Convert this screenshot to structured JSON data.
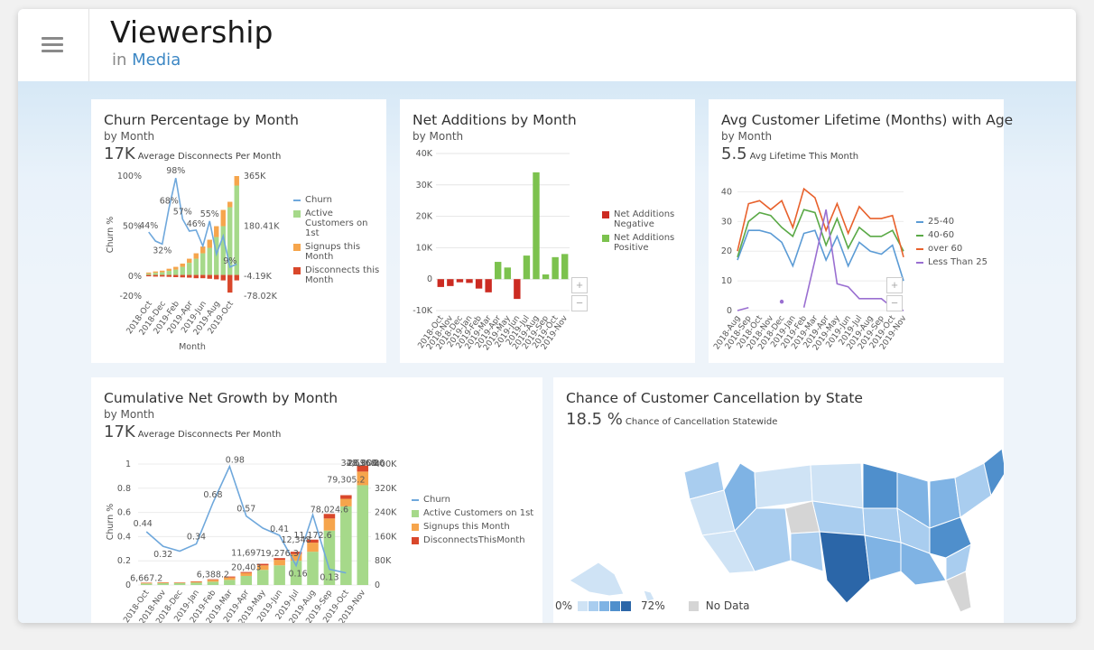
{
  "header": {
    "title": "Viewership",
    "in_label": "in",
    "space_link": "Media"
  },
  "colors": {
    "churn": "#6fa8dc",
    "active": "#a6d98a",
    "signups": "#f6a54c",
    "disconnects": "#d9472b",
    "neg": "#cc2b22",
    "pos": "#7cc24e",
    "age_25_40": "#5b9bd5",
    "age_40_60": "#5aa946",
    "age_over60": "#e8612c",
    "age_lt25": "#9a6fd1"
  },
  "cards": {
    "churn": {
      "title": "Churn Percentage by Month",
      "by": "by Month",
      "kpi": "17K",
      "kpi_label": "Average Disconnects Per Month",
      "legend": [
        "Churn",
        "Active Customers on 1st",
        "Signups this Month",
        "Disconnects this Month"
      ],
      "ylabel": "Churn %",
      "xlabel": "Month",
      "y_left_ticks": [
        "100%",
        "50%",
        "0%",
        "-20%"
      ],
      "y_right_ticks": [
        "365K",
        "180.41K",
        "-4.19K",
        "-78.02K"
      ],
      "x_ticks": [
        "2018-Oct",
        "2018-Dec",
        "2019-Feb",
        "2019-Apr",
        "2019-Jun",
        "2019-Aug",
        "2019-Oct"
      ],
      "data_labels": [
        "44%",
        "32%",
        "68%",
        "98%",
        "57%",
        "46%",
        "55%",
        "9%"
      ]
    },
    "net": {
      "title": "Net Additions by Month",
      "by": "by Month",
      "legend": [
        "Net Additions Negative",
        "Net Additions Positive"
      ],
      "y_ticks": [
        "40K",
        "30K",
        "20K",
        "10K",
        "0",
        "-10K"
      ],
      "x_ticks": [
        "2018-Oct",
        "2018-Nov",
        "2018-Dec",
        "2019-Jan",
        "2019-Feb",
        "2019-Mar",
        "2019-Apr",
        "2019-May",
        "2019-Jun",
        "2019-Jul",
        "2019-Aug",
        "2019-Sep",
        "2019-Oct",
        "2019-Nov"
      ],
      "zoom_in": "+",
      "zoom_out": "−"
    },
    "lifetime": {
      "title": "Avg Customer Lifetime (Months) with Age",
      "by": "by Month",
      "kpi": "5.5",
      "kpi_label": "Avg Lifetime This Month",
      "legend": [
        "25-40",
        "40-60",
        "over 60",
        "Less Than 25"
      ],
      "y_ticks": [
        "40",
        "30",
        "20",
        "10",
        "0"
      ],
      "x_ticks": [
        "2018-Aug",
        "2018-Sep",
        "2018-Oct",
        "2018-Nov",
        "2018-Dec",
        "2019-Jan",
        "2019-Feb",
        "2019-Mar",
        "2019-Apr",
        "2019-May",
        "2019-Jun",
        "2019-Jul",
        "2019-Aug",
        "2019-Sep",
        "2019-Oct",
        "2019-Nov"
      ],
      "zoom_in": "+",
      "zoom_out": "−"
    },
    "cumulative": {
      "title": "Cumulative Net Growth by Month",
      "by": "by Month",
      "kpi": "17K",
      "kpi_label": "Average Disconnects Per Month",
      "legend": [
        "Churn",
        "Active Customers on 1st",
        "Signups this Month",
        "DisconnectsThisMonth"
      ],
      "ylabel": "Churn %",
      "xlabel": "Month",
      "y_left_ticks": [
        "1",
        "0.8",
        "0.6",
        "0.4",
        "0.2",
        "0"
      ],
      "y_right_ticks": [
        "400K",
        "320K",
        "240K",
        "160K",
        "80K",
        "0"
      ],
      "x_ticks": [
        "2018-Oct",
        "2018-Nov",
        "2018-Dec",
        "2019-Jan",
        "2019-Feb",
        "2019-Mar",
        "2019-Apr",
        "2019-May",
        "2019-Jun",
        "2019-Jul",
        "2019-Aug",
        "2019-Sep",
        "2019-Oct",
        "2019-Nov"
      ],
      "churn_labels": [
        "0.44",
        "0.32",
        "0.34",
        "0.68",
        "0.98",
        "0.57",
        "0.41",
        "0.16",
        "0.13"
      ],
      "bar_labels": [
        "6,667.2",
        "6,388.2",
        "20,403",
        "11,697",
        "19,276.3",
        "12,348",
        "11,172.6",
        "78,024.6",
        "79,305.2",
        "328,368.6",
        "28,000",
        "4,696.8"
      ]
    },
    "map": {
      "title": "Chance of Customer Cancellation by State",
      "kpi": "18.5 %",
      "kpi_label": "Chance of Cancellation Statewide",
      "legend_min": "0%",
      "legend_max": "72%",
      "legend_nodata": "No Data",
      "scale": [
        "#cfe3f5",
        "#a9cdef",
        "#7fb3e4",
        "#4f8fcc",
        "#2b66a8"
      ],
      "nodata_color": "#d5d5d5"
    }
  },
  "chart_data": [
    {
      "type": "bar",
      "title": "Churn Percentage by Month",
      "categories": [
        "2018-Oct",
        "2018-Nov",
        "2018-Dec",
        "2019-Jan",
        "2019-Feb",
        "2019-Mar",
        "2019-Apr",
        "2019-May",
        "2019-Jun",
        "2019-Jul",
        "2019-Aug",
        "2019-Sep",
        "2019-Oct",
        "2019-Nov"
      ],
      "series": [
        {
          "name": "Churn",
          "type": "line",
          "values": [
            44,
            35,
            32,
            68,
            98,
            57,
            45,
            46,
            30,
            55,
            22,
            40,
            9,
            12
          ]
        },
        {
          "name": "Active Customers on 1st",
          "values": [
            5,
            8,
            10,
            15,
            20,
            30,
            45,
            60,
            80,
            100,
            140,
            180,
            250,
            330
          ]
        },
        {
          "name": "Signups this Month",
          "values": [
            4,
            5,
            6,
            8,
            10,
            12,
            15,
            20,
            25,
            30,
            40,
            60,
            20,
            35
          ]
        },
        {
          "name": "Disconnects this Month",
          "values": [
            -5,
            -6,
            -6,
            -7,
            -8,
            -9,
            -10,
            -12,
            -12,
            -14,
            -16,
            -20,
            -65,
            -20
          ]
        }
      ],
      "ylabel": "Churn %",
      "xlabel": "Month",
      "ylim_left": [
        -20,
        100
      ],
      "ylim_right": [
        -78.02,
        365
      ]
    },
    {
      "type": "bar",
      "title": "Net Additions by Month",
      "categories": [
        "2018-Oct",
        "2018-Nov",
        "2018-Dec",
        "2019-Jan",
        "2019-Feb",
        "2019-Mar",
        "2019-Apr",
        "2019-May",
        "2019-Jun",
        "2019-Jul",
        "2019-Aug",
        "2019-Sep",
        "2019-Oct",
        "2019-Nov"
      ],
      "series": [
        {
          "name": "Net Additions Negative",
          "values": [
            -2500,
            -2200,
            -1000,
            -1200,
            -3000,
            -4200,
            0,
            0,
            -6300,
            0,
            0,
            0,
            0,
            0
          ]
        },
        {
          "name": "Net Additions Positive",
          "values": [
            0,
            0,
            0,
            0,
            0,
            0,
            5500,
            3700,
            0,
            7500,
            34000,
            1500,
            7000,
            8000
          ]
        }
      ],
      "ylim": [
        -10000,
        40000
      ]
    },
    {
      "type": "line",
      "title": "Avg Customer Lifetime (Months) with Age",
      "categories": [
        "2018-Aug",
        "2018-Sep",
        "2018-Oct",
        "2018-Nov",
        "2018-Dec",
        "2019-Jan",
        "2019-Feb",
        "2019-Mar",
        "2019-Apr",
        "2019-May",
        "2019-Jun",
        "2019-Jul",
        "2019-Aug",
        "2019-Sep",
        "2019-Oct",
        "2019-Nov"
      ],
      "series": [
        {
          "name": "25-40",
          "values": [
            17,
            27,
            27,
            26,
            23,
            15,
            26,
            27,
            17,
            25,
            15,
            23,
            20,
            19,
            22,
            10
          ]
        },
        {
          "name": "40-60",
          "values": [
            18,
            30,
            33,
            32,
            28,
            25,
            34,
            33,
            22,
            31,
            21,
            28,
            25,
            25,
            27,
            20
          ]
        },
        {
          "name": "over 60",
          "values": [
            20,
            36,
            37,
            34,
            37,
            28,
            41,
            38,
            27,
            36,
            26,
            35,
            31,
            31,
            32,
            18
          ]
        },
        {
          "name": "Less Than 25",
          "values": [
            0,
            1,
            null,
            null,
            3,
            null,
            1,
            17,
            34,
            9,
            8,
            4,
            4,
            4,
            1,
            0
          ]
        }
      ],
      "ylim": [
        0,
        45
      ]
    },
    {
      "type": "bar",
      "title": "Cumulative Net Growth by Month",
      "categories": [
        "2018-Oct",
        "2018-Nov",
        "2018-Dec",
        "2019-Jan",
        "2019-Feb",
        "2019-Mar",
        "2019-Apr",
        "2019-May",
        "2019-Jun",
        "2019-Jul",
        "2019-Aug",
        "2019-Sep",
        "2019-Oct",
        "2019-Nov"
      ],
      "series": [
        {
          "name": "Churn",
          "type": "line",
          "values": [
            0.44,
            0.32,
            0.28,
            0.34,
            0.68,
            0.98,
            0.57,
            0.47,
            0.41,
            0.16,
            0.58,
            0.13,
            0.1,
            null
          ]
        },
        {
          "name": "Active Customers on 1st",
          "values": [
            5000,
            6000,
            6500,
            8000,
            11000,
            17000,
            30000,
            50000,
            65000,
            80000,
            110000,
            180000,
            260000,
            330000
          ]
        },
        {
          "name": "Signups this Month",
          "values": [
            2000,
            2000,
            1500,
            2500,
            6000,
            8000,
            10000,
            15000,
            18000,
            22000,
            30000,
            40000,
            25000,
            45000
          ]
        },
        {
          "name": "DisconnectsThisMonth",
          "values": [
            1000,
            1000,
            1000,
            1500,
            2000,
            3000,
            3000,
            5000,
            6000,
            8000,
            10000,
            15000,
            12000,
            20000
          ]
        }
      ],
      "ylabel": "Churn %",
      "xlabel": "Month",
      "ylim_left": [
        0,
        1
      ],
      "ylim_right": [
        0,
        400000
      ]
    }
  ]
}
